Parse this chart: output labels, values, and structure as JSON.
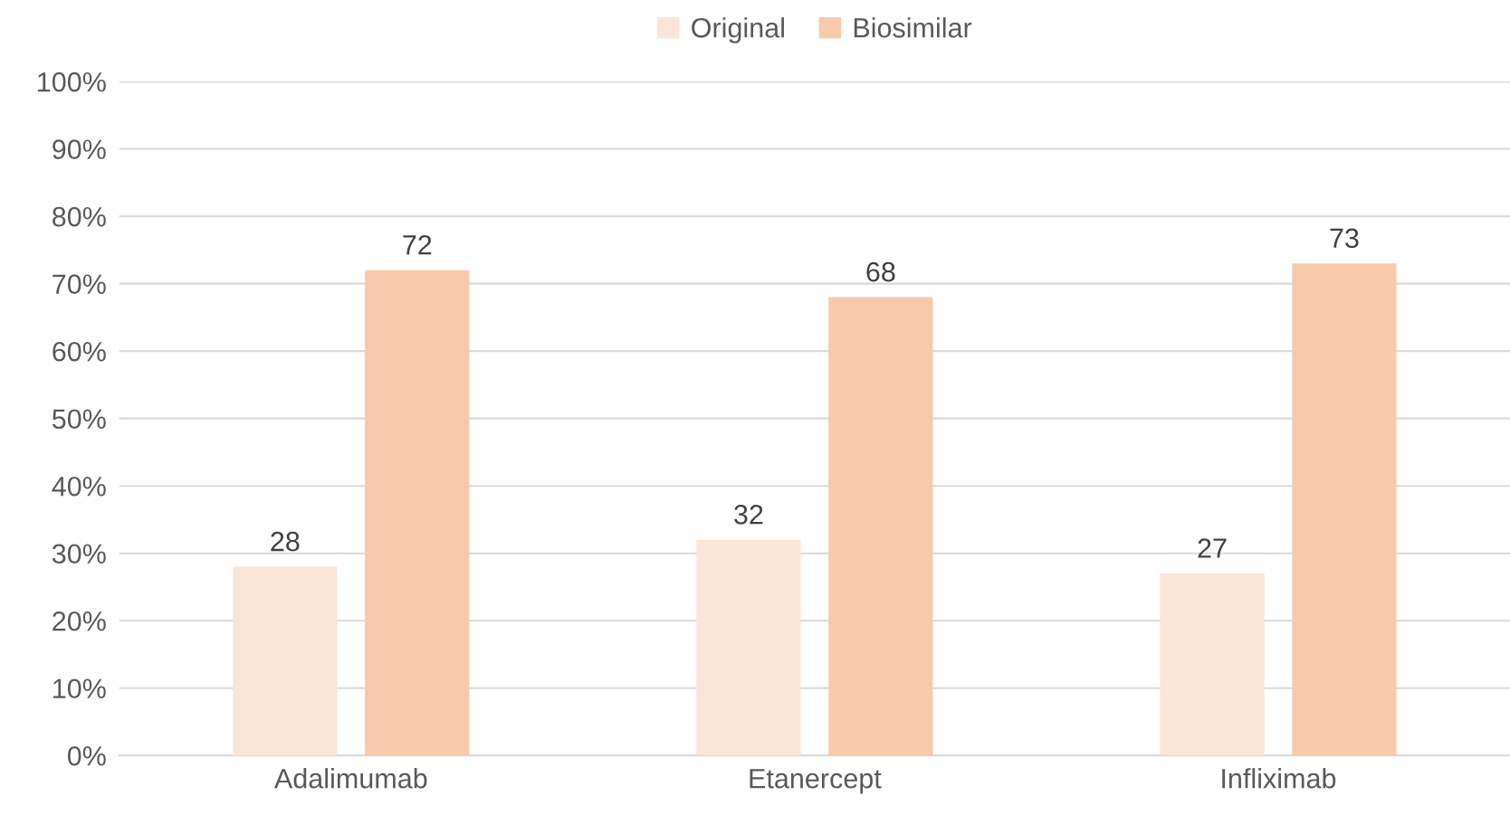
{
  "chart_data": {
    "type": "bar",
    "categories": [
      "Adalimumab",
      "Etanercept",
      "Infliximab"
    ],
    "series": [
      {
        "name": "Original",
        "color": "#fae5d6",
        "values": [
          28,
          32,
          27
        ]
      },
      {
        "name": "Biosimilar",
        "color": "#f7caac",
        "values": [
          72,
          68,
          73
        ]
      }
    ],
    "ylim": [
      0,
      100
    ],
    "yticks": [
      {
        "value": 0,
        "label": "0%"
      },
      {
        "value": 10,
        "label": "10%"
      },
      {
        "value": 20,
        "label": "20%"
      },
      {
        "value": 30,
        "label": "30%"
      },
      {
        "value": 40,
        "label": "40%"
      },
      {
        "value": 50,
        "label": "50%"
      },
      {
        "value": 60,
        "label": "60%"
      },
      {
        "value": 70,
        "label": "70%"
      },
      {
        "value": 80,
        "label": "80%"
      },
      {
        "value": 90,
        "label": "90%"
      },
      {
        "value": 100,
        "label": "100%"
      }
    ],
    "grid": "y",
    "legend": "top",
    "data_labels": true
  }
}
